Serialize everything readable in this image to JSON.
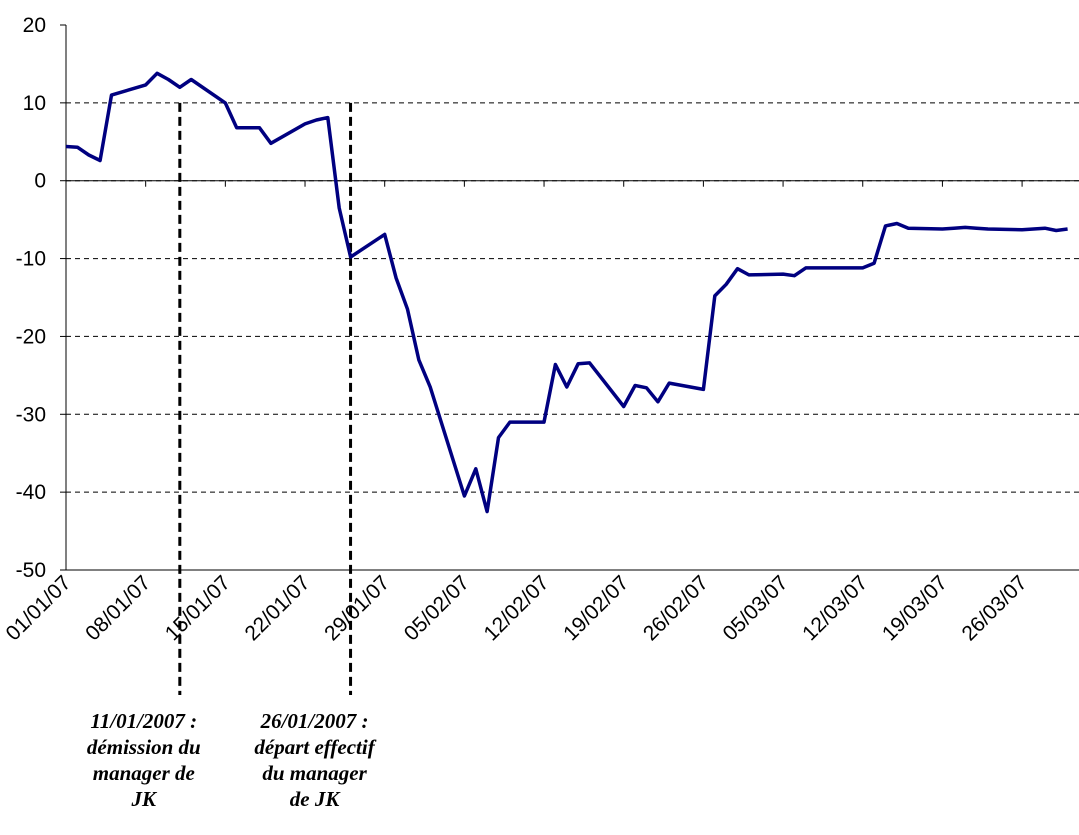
{
  "chart_data": {
    "type": "line",
    "x": [
      "01/01/07",
      "02/01/07",
      "03/01/07",
      "04/01/07",
      "05/01/07",
      "08/01/07",
      "09/01/07",
      "10/01/07",
      "11/01/07",
      "12/01/07",
      "15/01/07",
      "16/01/07",
      "17/01/07",
      "18/01/07",
      "19/01/07",
      "22/01/07",
      "23/01/07",
      "24/01/07",
      "25/01/07",
      "26/01/07",
      "29/01/07",
      "30/01/07",
      "31/01/07",
      "01/02/07",
      "02/02/07",
      "05/02/07",
      "06/02/07",
      "07/02/07",
      "08/02/07",
      "09/02/07",
      "12/02/07",
      "13/02/07",
      "14/02/07",
      "15/02/07",
      "16/02/07",
      "19/02/07",
      "20/02/07",
      "21/02/07",
      "22/02/07",
      "23/02/07",
      "26/02/07",
      "27/02/07",
      "28/02/07",
      "01/03/07",
      "02/03/07",
      "05/03/07",
      "06/03/07",
      "07/03/07",
      "08/03/07",
      "09/03/07",
      "12/03/07",
      "13/03/07",
      "14/03/07",
      "15/03/07",
      "16/03/07",
      "19/03/07",
      "20/03/07",
      "21/03/07",
      "22/03/07",
      "23/03/07",
      "26/03/07",
      "27/03/07",
      "28/03/07",
      "29/03/07",
      "30/03/07"
    ],
    "series": [
      {
        "name": "JK",
        "color": "#000080",
        "values": [
          4.4,
          4.3,
          3.3,
          2.6,
          11.0,
          12.3,
          13.8,
          13.0,
          12.0,
          13.0,
          10.0,
          6.8,
          6.8,
          6.8,
          4.8,
          7.3,
          7.8,
          8.1,
          -3.5,
          -9.8,
          -6.9,
          -12.5,
          -16.5,
          -23,
          -26.5,
          -40.5,
          -37,
          -42.5,
          -33,
          -31,
          -31,
          -23.6,
          -26.5,
          -23.5,
          -23.4,
          -29,
          -26.3,
          -26.6,
          -28.4,
          -26,
          -26.8,
          -14.8,
          -13.3,
          -11.3,
          -12.1,
          -12.0,
          -12.2,
          -11.2,
          -11.2,
          -11.2,
          -11.2,
          -10.6,
          -5.8,
          -5.5,
          -6.1,
          -6.2,
          -6.1,
          -6.0,
          -6.1,
          -6.2,
          -6.3,
          -6.2,
          -6.1,
          -6.4,
          -6.2
        ]
      }
    ],
    "xlim": [
      "01/01/07",
      "31/03/07"
    ],
    "xticks": [
      "01/01/07",
      "08/01/07",
      "15/01/07",
      "22/01/07",
      "29/01/07",
      "05/02/07",
      "12/02/07",
      "19/02/07",
      "26/02/07",
      "05/03/07",
      "12/03/07",
      "19/03/07",
      "26/03/07"
    ],
    "ylim": [
      -50,
      20
    ],
    "yticks": [
      -50,
      -40,
      -30,
      -20,
      -10,
      0,
      10,
      20
    ],
    "grid": true,
    "annotations": [
      {
        "x": "11/01/07",
        "lines": [
          "11/01/2007 :",
          "démission du",
          "manager de",
          "JK"
        ]
      },
      {
        "x": "26/01/07",
        "lines": [
          "26/01/2007 :",
          "départ effectif",
          "du manager",
          "de JK"
        ]
      }
    ]
  }
}
